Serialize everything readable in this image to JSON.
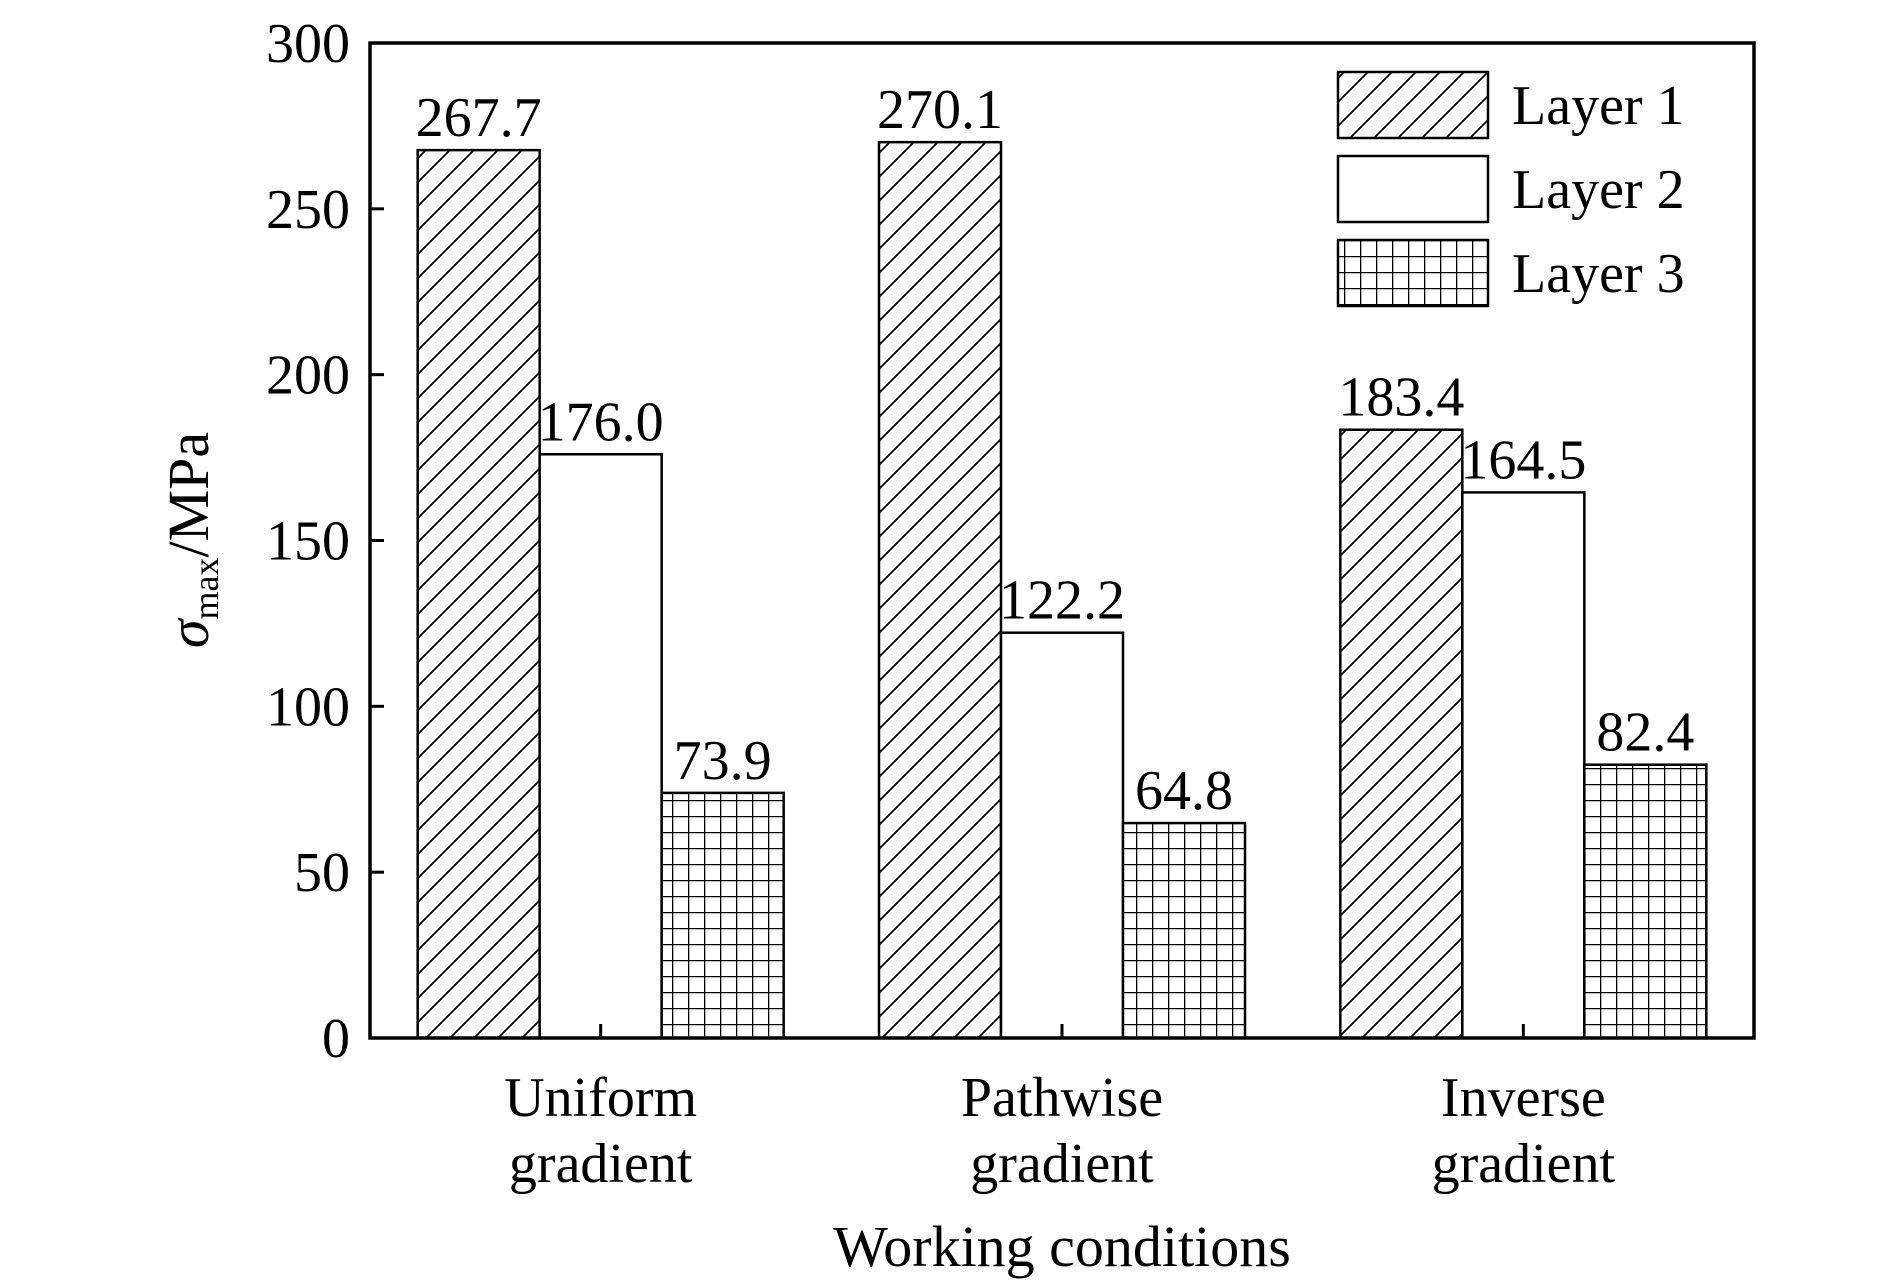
{
  "chart_data": {
    "type": "bar",
    "categories": [
      [
        "Uniform",
        "gradient"
      ],
      [
        "Pathwise",
        "gradient"
      ],
      [
        "Inverse",
        "gradient"
      ]
    ],
    "series": [
      {
        "name": "Layer 1",
        "pattern": "diagonal-hatch",
        "values": [
          267.7,
          270.1,
          183.4
        ],
        "labels": [
          "267.7",
          "270.1",
          "183.4"
        ]
      },
      {
        "name": "Layer 2",
        "pattern": "solid-white",
        "values": [
          176.0,
          122.2,
          164.5
        ],
        "labels": [
          "176.0",
          "122.2",
          "164.5"
        ]
      },
      {
        "name": "Layer 3",
        "pattern": "grid-hatch",
        "values": [
          73.9,
          64.8,
          82.4
        ],
        "labels": [
          "73.9",
          "64.8",
          "82.4"
        ]
      }
    ],
    "xlabel": "Working conditions",
    "ylabel": {
      "symbol": "σ",
      "subscript": "max",
      "unit": "/MPa"
    },
    "ylim": [
      0,
      300
    ],
    "yticks": [
      0,
      50,
      100,
      150,
      200,
      250,
      300
    ],
    "grid": false,
    "legend": "top-right",
    "colors": {
      "stroke": "#000000",
      "fill": "#ffffff"
    }
  }
}
